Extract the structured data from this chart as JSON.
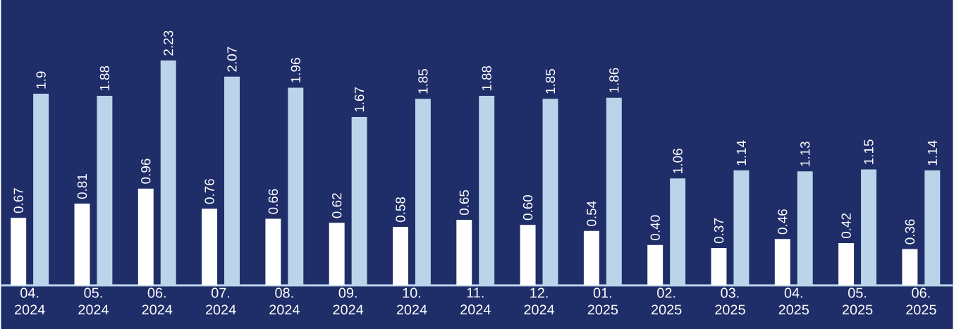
{
  "chart_data": {
    "type": "bar",
    "categories": [
      "04. 2024",
      "05. 2024",
      "06. 2024",
      "07. 2024",
      "08. 2024",
      "09. 2024",
      "10. 2024",
      "11. 2024",
      "12. 2024",
      "01. 2025",
      "02. 2025",
      "03. 2025",
      "04. 2025",
      "05. 2025",
      "06. 2025"
    ],
    "series": [
      {
        "color": "#ffffff",
        "values": [
          0.67,
          0.81,
          0.96,
          0.76,
          0.66,
          0.62,
          0.58,
          0.65,
          0.6,
          0.54,
          0.4,
          0.37,
          0.46,
          0.42,
          0.36
        ],
        "value_labels": [
          "0.67",
          "0.81",
          "0.96",
          "0.76",
          "0.66",
          "0.62",
          "0.58",
          "0.65",
          "0.60",
          "0.54",
          "0.40",
          "0.37",
          "0.46",
          "0.42",
          "0.36"
        ]
      },
      {
        "color": "#bcd4ea",
        "values": [
          1.9,
          1.88,
          2.23,
          2.07,
          1.96,
          1.67,
          1.85,
          1.88,
          1.85,
          1.86,
          1.06,
          1.14,
          1.13,
          1.15,
          1.14
        ],
        "value_labels": [
          "1.9",
          "1.88",
          "2.23",
          "2.07",
          "1.96",
          "1.67",
          "1.85",
          "1.88",
          "1.85",
          "1.86",
          "1.06",
          "1.14",
          "1.13",
          "1.15",
          "1.14"
        ]
      }
    ]
  }
}
